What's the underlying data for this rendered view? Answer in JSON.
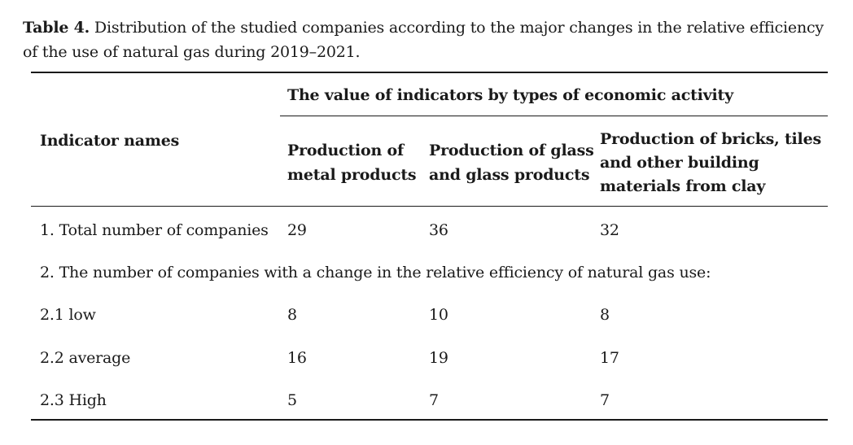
{
  "caption": {
    "label": "Table 4.",
    "text": "Distribution of the studied companies according to the major changes in the relative efficiency of the use of natural gas during 2019–2021."
  },
  "table": {
    "group_header": "The value of indicators by types of economic activity",
    "indicator_header": "Indicator names",
    "columns": [
      [
        "Production of",
        "metal products"
      ],
      [
        "Production of glass",
        "and glass products"
      ],
      [
        "Production of bricks, tiles",
        "and other building",
        "materials from clay"
      ]
    ],
    "total_row": {
      "label": "1. Total number of companies",
      "values": [
        "29",
        "36",
        "32"
      ]
    },
    "section_row": "2. The number of companies with a change in the relative efficiency of natural gas use:",
    "rows": [
      {
        "label": "2.1 low",
        "values": [
          "8",
          "10",
          "8"
        ]
      },
      {
        "label": "2.2 average",
        "values": [
          "16",
          "19",
          "17"
        ]
      },
      {
        "label": "2.3 High",
        "values": [
          "5",
          "7",
          "7"
        ]
      }
    ]
  }
}
